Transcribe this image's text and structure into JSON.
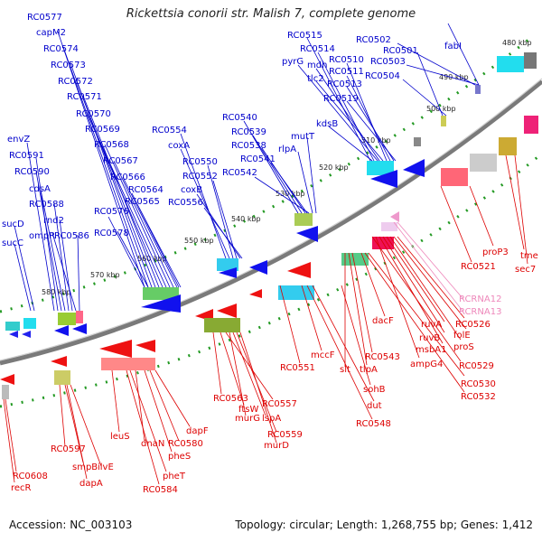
{
  "title": "Rickettsia conorii str. Malish 7, complete genome",
  "accession": "Accession: NC_003103",
  "summary": "Topology: circular; Length: 1,268,755 bp; Genes: 1,412",
  "colors": {
    "blue_label": "#0000cc",
    "red_label": "#dd0000",
    "pink_label": "#ee88bb",
    "backbone": "#888888"
  },
  "kbp_ticks": [
    {
      "label": "480 kbp"
    },
    {
      "label": "490 kbp"
    },
    {
      "label": "500 kbp"
    },
    {
      "label": "510 kbp"
    },
    {
      "label": "520 kbp"
    },
    {
      "label": "530 kbp"
    },
    {
      "label": "540 kbp"
    },
    {
      "label": "550 kbp"
    },
    {
      "label": "560 kbp"
    },
    {
      "label": "570 kbp"
    },
    {
      "label": "580 kbp"
    }
  ],
  "outer_genes": [
    "RC0577",
    "capM2",
    "RC0574",
    "RC0573",
    "RC0572",
    "RC0571",
    "RC0570",
    "RC0569",
    "RC0568",
    "RC0567",
    "RC0566",
    "RC0564",
    "RC0565",
    "RC0576",
    "RC0578",
    "envZ",
    "RC0591",
    "RC0590",
    "cdsA",
    "RC0588",
    "rnd2",
    "ompR",
    "RC0586",
    "sucD",
    "sucC",
    "RC0554",
    "coxA",
    "RC0550",
    "RC0552",
    "coxB",
    "RC0556",
    "RC0540",
    "RC0539",
    "RC0538",
    "RC0541",
    "RC0542",
    "rlpA",
    "mutT",
    "RC0515",
    "RC0514",
    "pyrG",
    "mdh",
    "tlc2",
    "RC0510",
    "RC0511",
    "RC0513",
    "RC0519",
    "kdsB",
    "RC0502",
    "RC0503",
    "RC0501",
    "RC0504",
    "fabI"
  ],
  "inner_genes": [
    "tme",
    "sec7",
    "proP3",
    "RC0521",
    "RCRNA12",
    "RCRNA13",
    "RC0526",
    "folE",
    "proS",
    "ruvA",
    "ruvB",
    "msbA1",
    "ampG4",
    "RC0529",
    "RC0530",
    "RC0532",
    "dacF",
    "RC0543",
    "tlpA",
    "slt",
    "sohB",
    "dut",
    "RC0548",
    "mccF",
    "RC0551",
    "RC0563",
    "ftsW",
    "RC0557",
    "murG",
    "lspA",
    "RC0559",
    "murD",
    "dapF",
    "RC0580",
    "pheS",
    "dnaN",
    "pheT",
    "RC0584",
    "leuS",
    "RC0597",
    "smpB",
    "ilvE",
    "dapA",
    "RC0608",
    "recR"
  ]
}
